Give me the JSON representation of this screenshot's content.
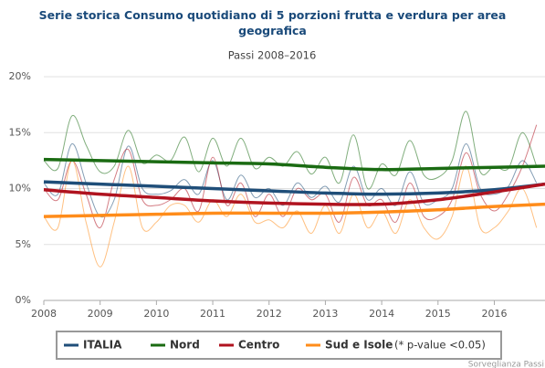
{
  "chart_data": {
    "type": "line",
    "title": "Serie storica Consumo quotidiano di 5 porzioni frutta e verdura per area geografica",
    "subtitle": "Passi 2008–2016",
    "x": [
      2008,
      2008.25,
      2008.5,
      2008.75,
      2009,
      2009.25,
      2009.5,
      2009.75,
      2010,
      2010.25,
      2010.5,
      2010.75,
      2011,
      2011.25,
      2011.5,
      2011.75,
      2012,
      2012.25,
      2012.5,
      2012.75,
      2013,
      2013.25,
      2013.5,
      2013.75,
      2014,
      2014.25,
      2014.5,
      2014.75,
      2015,
      2015.25,
      2015.5,
      2015.75,
      2016,
      2016.25,
      2016.5,
      2016.75
    ],
    "trend_x": [
      2008,
      2009,
      2010,
      2011,
      2012,
      2013,
      2014,
      2015,
      2016,
      2016.9
    ],
    "series": [
      {
        "name": "ITALIA",
        "color": "#1f4e79",
        "values": [
          10.5,
          9.5,
          14.0,
          10.5,
          7.5,
          9.0,
          13.8,
          10.0,
          9.5,
          9.8,
          10.8,
          9.5,
          12.5,
          9.0,
          11.2,
          9.2,
          10.0,
          8.5,
          10.5,
          9.2,
          10.2,
          8.8,
          12.0,
          9.0,
          10.0,
          8.5,
          11.5,
          8.7,
          9.0,
          10.0,
          14.0,
          10.0,
          9.5,
          10.2,
          12.5,
          10.5
        ],
        "trend": [
          10.6,
          10.4,
          10.2,
          10.0,
          9.8,
          9.6,
          9.5,
          9.6,
          9.9,
          10.4
        ]
      },
      {
        "name": "Nord",
        "color": "#1a6b12",
        "values": [
          12.5,
          11.8,
          16.5,
          13.9,
          11.5,
          12.0,
          15.2,
          12.3,
          13.0,
          12.5,
          14.6,
          11.5,
          14.5,
          12.0,
          14.5,
          11.8,
          12.8,
          12.0,
          13.3,
          11.3,
          12.8,
          10.5,
          14.8,
          10.0,
          12.2,
          11.2,
          14.3,
          11.2,
          11.0,
          12.5,
          16.9,
          11.5,
          12.0,
          11.8,
          15.0,
          12.0
        ],
        "trend": [
          12.6,
          12.5,
          12.4,
          12.3,
          12.2,
          11.9,
          11.7,
          11.8,
          11.9,
          12.0
        ]
      },
      {
        "name": "Centro",
        "color": "#b0131f",
        "values": [
          10.0,
          9.0,
          12.5,
          9.5,
          6.5,
          10.8,
          13.5,
          9.0,
          8.5,
          9.0,
          10.0,
          8.0,
          12.8,
          8.5,
          10.5,
          7.5,
          9.5,
          7.5,
          10.0,
          9.0,
          9.5,
          7.0,
          11.0,
          8.5,
          9.0,
          7.0,
          10.5,
          7.5,
          7.5,
          9.0,
          13.2,
          9.5,
          8.0,
          9.5,
          12.0,
          15.7
        ],
        "trend": [
          9.9,
          9.5,
          9.2,
          8.9,
          8.7,
          8.6,
          8.6,
          9.0,
          9.7,
          10.4
        ]
      },
      {
        "name": "Sud e Isole",
        "color": "#ff8c1a",
        "values": [
          7.5,
          6.5,
          12.5,
          7.0,
          3.0,
          7.0,
          12.0,
          6.5,
          7.0,
          8.5,
          8.5,
          7.0,
          9.0,
          7.5,
          9.5,
          7.0,
          7.2,
          6.5,
          8.0,
          6.0,
          8.5,
          6.0,
          9.5,
          6.5,
          8.0,
          6.0,
          9.0,
          6.5,
          5.5,
          7.5,
          12.0,
          6.5,
          6.5,
          8.0,
          10.0,
          6.5
        ],
        "trend": [
          7.5,
          7.6,
          7.7,
          7.8,
          7.8,
          7.8,
          7.9,
          8.1,
          8.4,
          8.6
        ]
      }
    ],
    "xlim": [
      2008,
      2016.9
    ],
    "xticks": [
      2008,
      2009,
      2010,
      2011,
      2012,
      2013,
      2014,
      2015,
      2016
    ],
    "ylim": [
      0,
      20
    ],
    "yticks": [
      {
        "value": 0,
        "label": "0%"
      },
      {
        "value": 5,
        "label": "5%"
      },
      {
        "value": 10,
        "label": "10%"
      },
      {
        "value": 15,
        "label": "15%"
      },
      {
        "value": 20,
        "label": "20%"
      }
    ],
    "grid": true,
    "legend_note": "(* p-value <0.05)",
    "credit": "Sorveglianza Passi"
  }
}
